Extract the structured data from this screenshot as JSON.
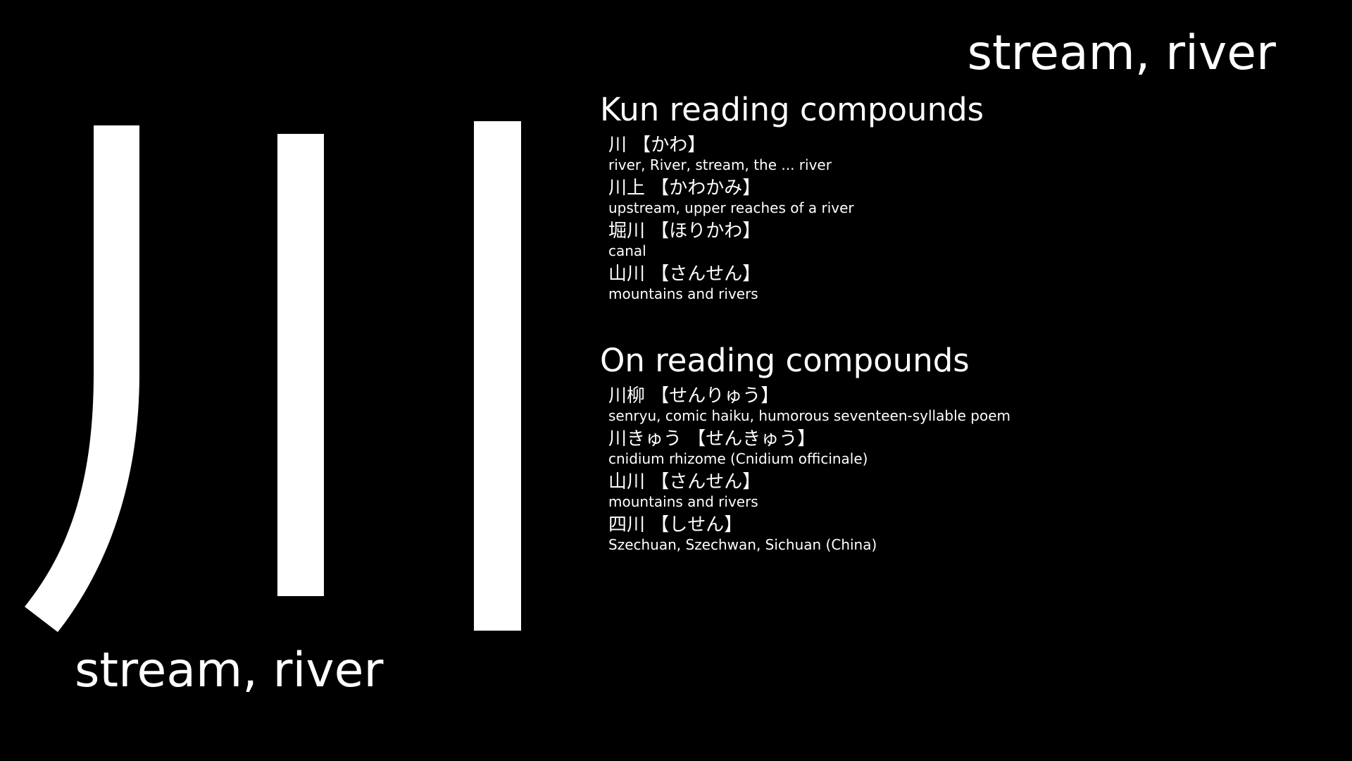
{
  "meaning": "stream, river",
  "colors": {
    "background": "#000000",
    "foreground": "#ffffff"
  },
  "kun_section": {
    "heading": "Kun reading compounds",
    "entries": [
      {
        "word": "川 【かわ】",
        "gloss": "river, River, stream, the ... river"
      },
      {
        "word": "川上 【かわかみ】",
        "gloss": "upstream, upper reaches of a river"
      },
      {
        "word": "堀川 【ほりかわ】",
        "gloss": "canal"
      },
      {
        "word": "山川 【さんせん】",
        "gloss": "mountains and rivers"
      }
    ]
  },
  "on_section": {
    "heading": "On reading compounds",
    "entries": [
      {
        "word": "川柳 【せんりゅう】",
        "gloss": "senryu, comic haiku, humorous seventeen-syllable poem"
      },
      {
        "word": "川きゅう 【せんきゅう】",
        "gloss": "cnidium rhizome (Cnidium officinale)"
      },
      {
        "word": "山川 【さんせん】",
        "gloss": "mountains and rivers"
      },
      {
        "word": "四川 【しせん】",
        "gloss": "Szechuan, Szechwan, Sichuan (China)"
      }
    ]
  }
}
